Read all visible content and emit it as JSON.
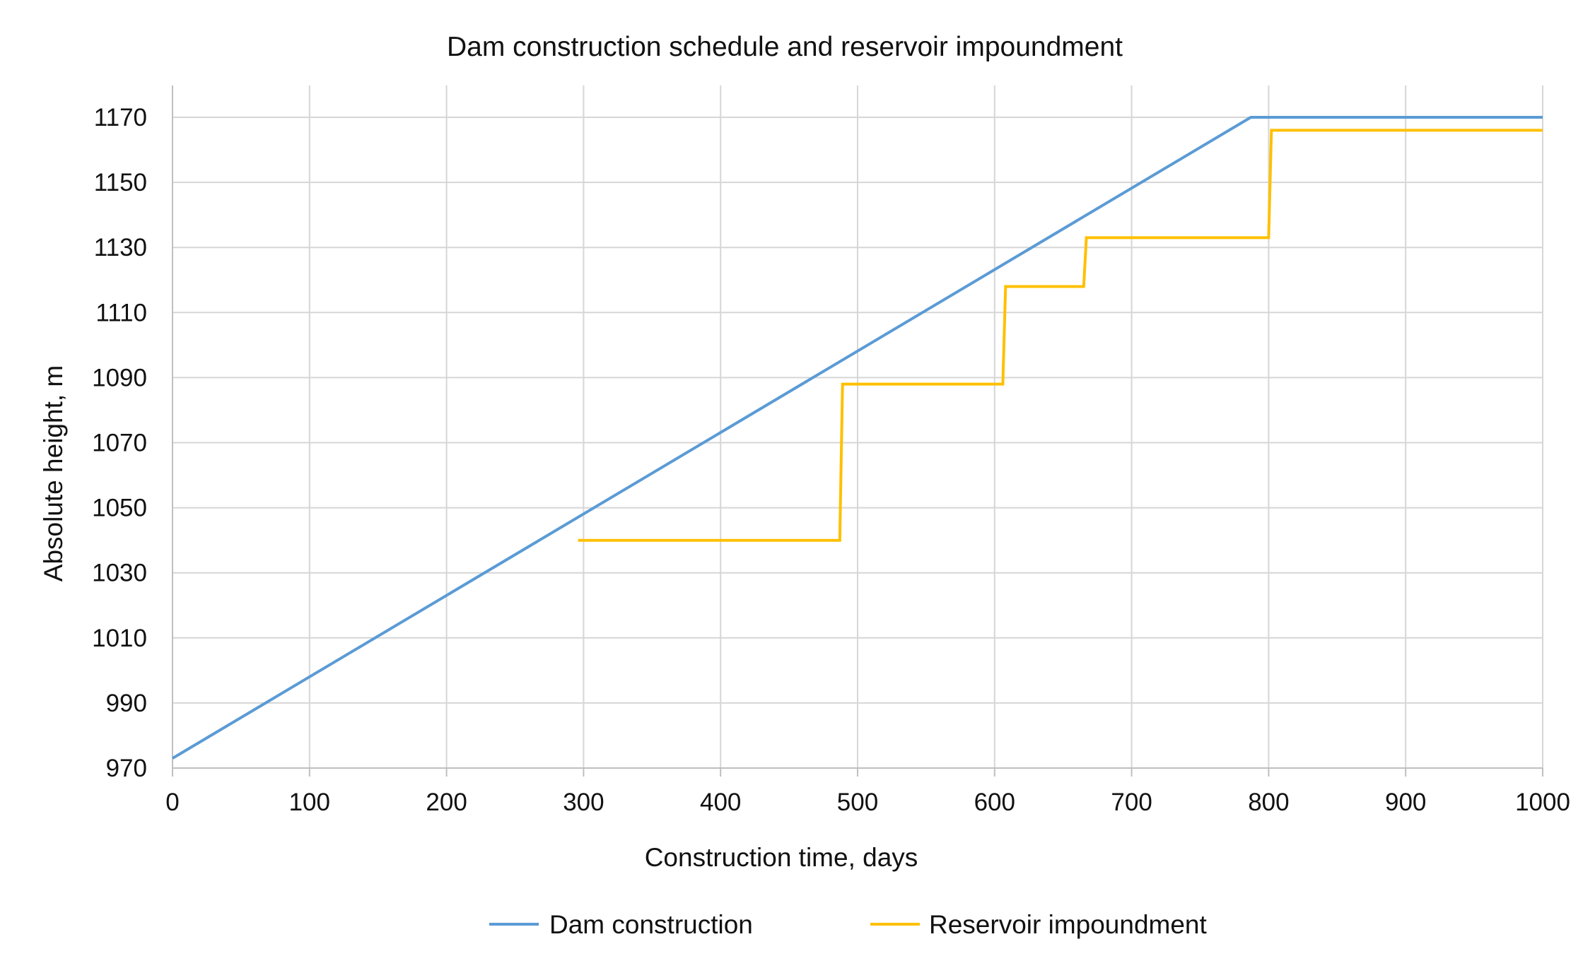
{
  "chart_data": {
    "type": "line",
    "title": "Dam construction schedule and reservoir impoundment",
    "xlabel": "Construction time, days",
    "ylabel": "Absolute height, m",
    "xlim": [
      0,
      1000
    ],
    "ylim": [
      970,
      1180
    ],
    "x_ticks": [
      0,
      100,
      200,
      300,
      400,
      500,
      600,
      700,
      800,
      900,
      1000
    ],
    "y_ticks": [
      970,
      990,
      1010,
      1030,
      1050,
      1070,
      1090,
      1110,
      1130,
      1150,
      1170
    ],
    "grid": true,
    "legend_position": "bottom",
    "series": [
      {
        "name": "Dam construction",
        "color": "#5b9bd5",
        "points": [
          [
            0,
            973
          ],
          [
            787,
            1170
          ],
          [
            1000,
            1170
          ]
        ]
      },
      {
        "name": "Reservoir impoundment",
        "color": "#ffc000",
        "points": [
          [
            296,
            1040
          ],
          [
            487,
            1040
          ],
          [
            489,
            1088
          ],
          [
            606,
            1088
          ],
          [
            608,
            1118
          ],
          [
            665,
            1118
          ],
          [
            667,
            1133
          ],
          [
            800,
            1133
          ],
          [
            802,
            1166
          ],
          [
            1000,
            1166
          ]
        ]
      }
    ]
  }
}
